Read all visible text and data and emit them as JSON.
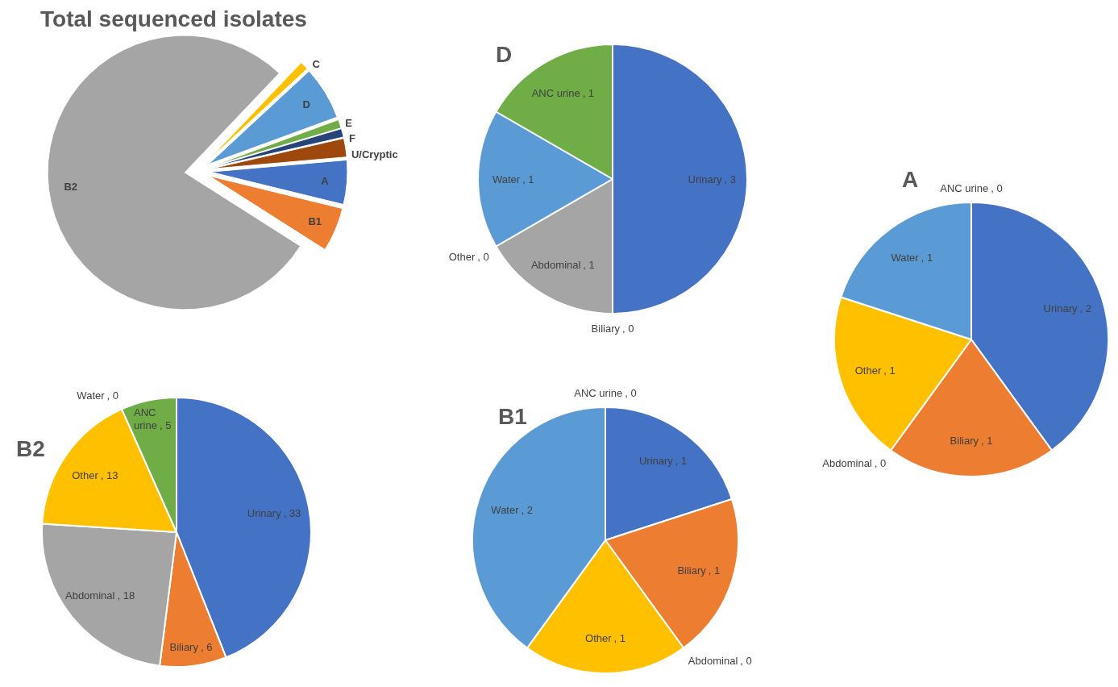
{
  "chart_data": [
    {
      "type": "pie",
      "title": "Total sequenced isolates",
      "categories": [
        "A",
        "B1",
        "B2",
        "C",
        "D",
        "E",
        "F",
        "U/Cryptic"
      ],
      "values": [
        5.2,
        5.2,
        78.1,
        1,
        6.3,
        1,
        1,
        2.2
      ],
      "colors": [
        "#4472c4",
        "#ed7d31",
        "#a5a5a5",
        "#ffc000",
        "#5b9bd5",
        "#70ad47",
        "#264478",
        "#9e480e"
      ]
    },
    {
      "type": "pie",
      "title": "D",
      "categories": [
        "Urinary",
        "Biliary",
        "Abdominal",
        "Other",
        "Water",
        "ANC urine"
      ],
      "values": [
        3,
        0,
        1,
        0,
        1,
        1
      ],
      "colors": [
        "#4472c4",
        "#ed7d31",
        "#a5a5a5",
        "#ffc000",
        "#5b9bd5",
        "#70ad47"
      ],
      "value_labels": [
        ", 3",
        ", 0",
        ", 1",
        ", 0",
        ", 1",
        ", 1"
      ]
    },
    {
      "type": "pie",
      "title": "A",
      "categories": [
        "Urinary",
        "Biliary",
        "Abdominal",
        "Other",
        "Water",
        "ANC urine"
      ],
      "values": [
        2,
        1,
        0,
        1,
        1,
        0
      ],
      "colors": [
        "#4472c4",
        "#ed7d31",
        "#a5a5a5",
        "#ffc000",
        "#5b9bd5",
        "#70ad47"
      ],
      "value_labels": [
        ", 2",
        ", 1",
        ", 0",
        ", 1",
        ", 1",
        ", 0"
      ]
    },
    {
      "type": "pie",
      "title": "B2",
      "categories": [
        "Urinary",
        "Biliary",
        "Abdominal",
        "Other",
        "Water",
        "ANC urine"
      ],
      "values": [
        33,
        6,
        18,
        13,
        0,
        5
      ],
      "colors": [
        "#4472c4",
        "#ed7d31",
        "#a5a5a5",
        "#ffc000",
        "#5b9bd5",
        "#70ad47"
      ],
      "value_labels": [
        ", 33",
        ", 6",
        ", 18",
        ", 13",
        ", 0",
        ", 5"
      ]
    },
    {
      "type": "pie",
      "title": "B1",
      "categories": [
        "Urinary",
        "Biliary",
        "Abdominal",
        "Other",
        "Water",
        "ANC urine"
      ],
      "values": [
        1,
        1,
        0,
        1,
        2,
        0
      ],
      "colors": [
        "#4472c4",
        "#ed7d31",
        "#a5a5a5",
        "#ffc000",
        "#5b9bd5",
        "#70ad47"
      ],
      "value_labels": [
        ", 1",
        ", 1",
        ", 0",
        ", 1",
        ", 2",
        ", 0"
      ]
    }
  ]
}
